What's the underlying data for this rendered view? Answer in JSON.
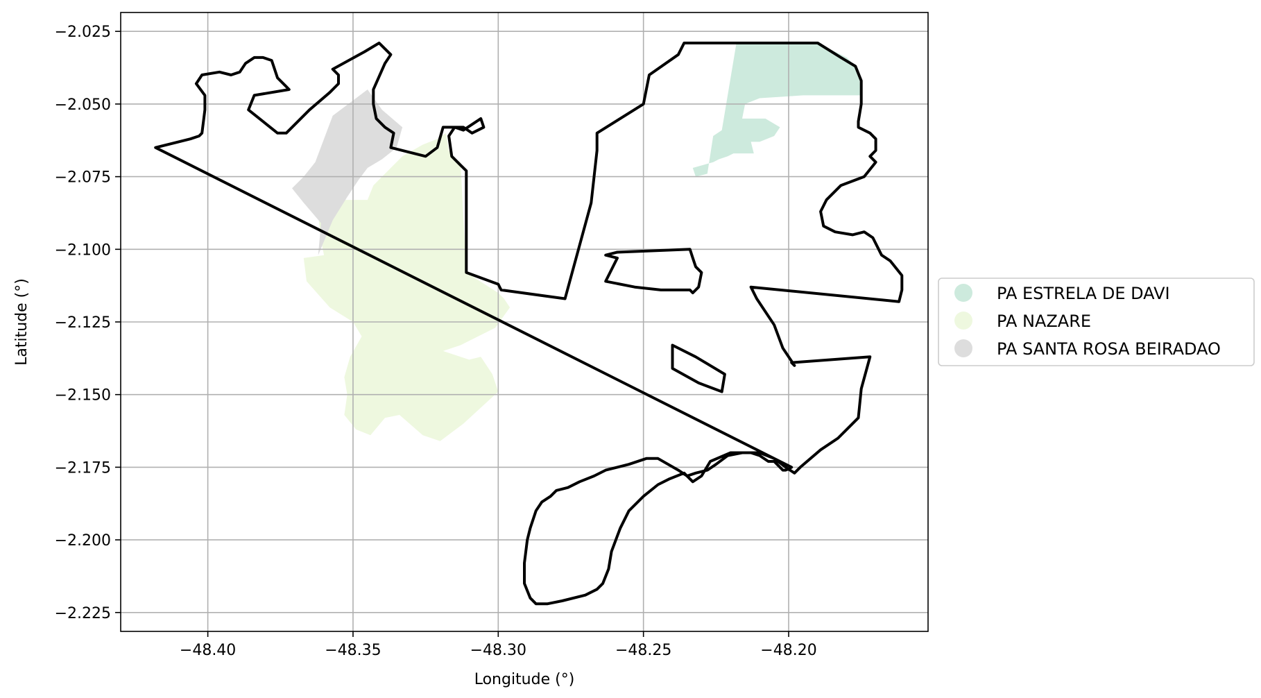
{
  "chart_data": {
    "type": "map",
    "xlabel": "Longitude (°)",
    "ylabel": "Latitude (°)",
    "xlim": [
      -48.43,
      -48.152
    ],
    "ylim": [
      -2.2315,
      -2.0185
    ],
    "x_ticks": [
      -48.4,
      -48.35,
      -48.3,
      -48.25,
      -48.2
    ],
    "x_tick_labels": [
      "−48.40",
      "−48.35",
      "−48.30",
      "−48.25",
      "−48.20"
    ],
    "y_ticks": [
      -2.025,
      -2.05,
      -2.075,
      -2.1,
      -2.125,
      -2.15,
      -2.175,
      -2.2,
      -2.225
    ],
    "y_tick_labels": [
      "−2.025",
      "−2.050",
      "−2.075",
      "−2.100",
      "−2.125",
      "−2.150",
      "−2.175",
      "−2.200",
      "−2.225"
    ],
    "grid": true,
    "legend_position": "center-right outside",
    "series": [
      {
        "name": "PA ESTRELA DE DAVI",
        "color": "#cdeadd",
        "polygons": [
          [
            [
              -48.218,
              -2.029
            ],
            [
              -48.19,
              -2.029
            ],
            [
              -48.18,
              -2.034
            ],
            [
              -48.176,
              -2.038
            ],
            [
              -48.175,
              -2.047
            ],
            [
              -48.195,
              -2.047
            ],
            [
              -48.21,
              -2.048
            ],
            [
              -48.215,
              -2.05
            ],
            [
              -48.216,
              -2.055
            ],
            [
              -48.208,
              -2.055
            ],
            [
              -48.203,
              -2.058
            ],
            [
              -48.205,
              -2.061
            ],
            [
              -48.21,
              -2.063
            ],
            [
              -48.213,
              -2.063
            ],
            [
              -48.212,
              -2.067
            ],
            [
              -48.219,
              -2.067
            ],
            [
              -48.221,
              -2.068
            ],
            [
              -48.224,
              -2.069
            ],
            [
              -48.226,
              -2.07
            ],
            [
              -48.233,
              -2.072
            ],
            [
              -48.232,
              -2.075
            ],
            [
              -48.228,
              -2.074
            ],
            [
              -48.226,
              -2.061
            ],
            [
              -48.223,
              -2.059
            ],
            [
              -48.218,
              -2.029
            ]
          ]
        ]
      },
      {
        "name": "PA NAZARE",
        "color": "#eef8df",
        "polygons": [
          [
            [
              -48.34,
              -2.075
            ],
            [
              -48.333,
              -2.068
            ],
            [
              -48.326,
              -2.064
            ],
            [
              -48.321,
              -2.062
            ],
            [
              -48.318,
              -2.06
            ],
            [
              -48.317,
              -2.066
            ],
            [
              -48.315,
              -2.069
            ],
            [
              -48.313,
              -2.07
            ],
            [
              -48.311,
              -2.108
            ],
            [
              -48.3,
              -2.115
            ],
            [
              -48.298,
              -2.117
            ],
            [
              -48.296,
              -2.12
            ],
            [
              -48.301,
              -2.127
            ],
            [
              -48.313,
              -2.133
            ],
            [
              -48.319,
              -2.135
            ],
            [
              -48.31,
              -2.138
            ],
            [
              -48.306,
              -2.137
            ],
            [
              -48.302,
              -2.143
            ],
            [
              -48.3,
              -2.149
            ],
            [
              -48.312,
              -2.16
            ],
            [
              -48.32,
              -2.166
            ],
            [
              -48.326,
              -2.164
            ],
            [
              -48.334,
              -2.157
            ],
            [
              -48.339,
              -2.158
            ],
            [
              -48.344,
              -2.164
            ],
            [
              -48.349,
              -2.162
            ],
            [
              -48.353,
              -2.157
            ],
            [
              -48.352,
              -2.15
            ],
            [
              -48.353,
              -2.144
            ],
            [
              -48.351,
              -2.137
            ],
            [
              -48.347,
              -2.13
            ],
            [
              -48.35,
              -2.125
            ],
            [
              -48.358,
              -2.12
            ],
            [
              -48.366,
              -2.111
            ],
            [
              -48.367,
              -2.103
            ],
            [
              -48.36,
              -2.102
            ],
            [
              -48.361,
              -2.097
            ],
            [
              -48.362,
              -2.088
            ],
            [
              -48.355,
              -2.083
            ],
            [
              -48.345,
              -2.083
            ],
            [
              -48.343,
              -2.078
            ],
            [
              -48.34,
              -2.075
            ]
          ]
        ]
      },
      {
        "name": "PA SANTA ROSA BEIRADAO",
        "color": "#dddddd",
        "polygons": [
          [
            [
              -48.345,
              -2.045
            ],
            [
              -48.34,
              -2.052
            ],
            [
              -48.333,
              -2.058
            ],
            [
              -48.335,
              -2.065
            ],
            [
              -48.34,
              -2.069
            ],
            [
              -48.345,
              -2.072
            ],
            [
              -48.348,
              -2.076
            ],
            [
              -48.352,
              -2.082
            ],
            [
              -48.357,
              -2.09
            ],
            [
              -48.362,
              -2.102
            ],
            [
              -48.361,
              -2.091
            ],
            [
              -48.367,
              -2.084
            ],
            [
              -48.371,
              -2.079
            ],
            [
              -48.367,
              -2.075
            ],
            [
              -48.363,
              -2.07
            ],
            [
              -48.357,
              -2.054
            ],
            [
              -48.345,
              -2.045
            ]
          ]
        ]
      }
    ],
    "outlines": [
      [
        [
          -48.418,
          -2.065
        ],
        [
          -48.406,
          -2.062
        ],
        [
          -48.403,
          -2.061
        ],
        [
          -48.402,
          -2.06
        ],
        [
          -48.401,
          -2.052
        ],
        [
          -48.401,
          -2.047
        ],
        [
          -48.404,
          -2.043
        ],
        [
          -48.402,
          -2.04
        ],
        [
          -48.396,
          -2.039
        ],
        [
          -48.392,
          -2.04
        ],
        [
          -48.389,
          -2.039
        ],
        [
          -48.387,
          -2.036
        ],
        [
          -48.384,
          -2.034
        ],
        [
          -48.381,
          -2.034
        ],
        [
          -48.378,
          -2.035
        ],
        [
          -48.376,
          -2.041
        ],
        [
          -48.373,
          -2.044
        ],
        [
          -48.372,
          -2.045
        ],
        [
          -48.384,
          -2.047
        ],
        [
          -48.386,
          -2.052
        ],
        [
          -48.376,
          -2.06
        ],
        [
          -48.373,
          -2.06
        ],
        [
          -48.365,
          -2.052
        ],
        [
          -48.358,
          -2.046
        ],
        [
          -48.355,
          -2.043
        ],
        [
          -48.355,
          -2.04
        ],
        [
          -48.357,
          -2.038
        ],
        [
          -48.346,
          -2.032
        ],
        [
          -48.341,
          -2.029
        ],
        [
          -48.34,
          -2.03
        ],
        [
          -48.337,
          -2.033
        ],
        [
          -48.339,
          -2.036
        ],
        [
          -48.343,
          -2.045
        ],
        [
          -48.343,
          -2.05
        ],
        [
          -48.342,
          -2.055
        ],
        [
          -48.339,
          -2.058
        ],
        [
          -48.336,
          -2.06
        ],
        [
          -48.337,
          -2.065
        ],
        [
          -48.325,
          -2.068
        ],
        [
          -48.321,
          -2.065
        ],
        [
          -48.319,
          -2.058
        ],
        [
          -48.315,
          -2.058
        ],
        [
          -48.312,
          -2.058
        ],
        [
          -48.309,
          -2.06
        ],
        [
          -48.305,
          -2.058
        ],
        [
          -48.306,
          -2.055
        ],
        [
          -48.312,
          -2.059
        ],
        [
          -48.315,
          -2.058
        ],
        [
          -48.317,
          -2.061
        ],
        [
          -48.316,
          -2.068
        ],
        [
          -48.313,
          -2.071
        ],
        [
          -48.311,
          -2.073
        ],
        [
          -48.311,
          -2.108
        ],
        [
          -48.3,
          -2.112
        ],
        [
          -48.299,
          -2.114
        ],
        [
          -48.277,
          -2.117
        ],
        [
          -48.268,
          -2.084
        ],
        [
          -48.266,
          -2.066
        ],
        [
          -48.266,
          -2.06
        ],
        [
          -48.25,
          -2.05
        ],
        [
          -48.248,
          -2.04
        ],
        [
          -48.238,
          -2.033
        ],
        [
          -48.236,
          -2.029
        ],
        [
          -48.215,
          -2.029
        ],
        [
          -48.19,
          -2.029
        ],
        [
          -48.182,
          -2.034
        ],
        [
          -48.177,
          -2.037
        ],
        [
          -48.175,
          -2.042
        ],
        [
          -48.175,
          -2.05
        ],
        [
          -48.176,
          -2.056
        ],
        [
          -48.176,
          -2.058
        ],
        [
          -48.172,
          -2.06
        ],
        [
          -48.17,
          -2.062
        ],
        [
          -48.17,
          -2.066
        ],
        [
          -48.172,
          -2.068
        ],
        [
          -48.17,
          -2.07
        ],
        [
          -48.174,
          -2.075
        ],
        [
          -48.182,
          -2.078
        ],
        [
          -48.187,
          -2.083
        ],
        [
          -48.189,
          -2.087
        ],
        [
          -48.188,
          -2.092
        ],
        [
          -48.184,
          -2.094
        ],
        [
          -48.178,
          -2.095
        ],
        [
          -48.174,
          -2.094
        ],
        [
          -48.171,
          -2.096
        ],
        [
          -48.168,
          -2.102
        ],
        [
          -48.165,
          -2.104
        ],
        [
          -48.161,
          -2.109
        ],
        [
          -48.161,
          -2.114
        ],
        [
          -48.162,
          -2.118
        ],
        [
          -48.213,
          -2.113
        ],
        [
          -48.211,
          -2.117
        ],
        [
          -48.205,
          -2.126
        ],
        [
          -48.202,
          -2.134
        ],
        [
          -48.198,
          -2.14
        ],
        [
          -48.199,
          -2.139
        ],
        [
          -48.172,
          -2.137
        ],
        [
          -48.175,
          -2.148
        ],
        [
          -48.176,
          -2.158
        ],
        [
          -48.183,
          -2.165
        ],
        [
          -48.189,
          -2.169
        ],
        [
          -48.196,
          -2.175
        ],
        [
          -48.198,
          -2.177
        ],
        [
          -48.201,
          -2.175
        ],
        [
          -48.205,
          -2.172
        ],
        [
          -48.21,
          -2.17
        ],
        [
          -48.215,
          -2.17
        ],
        [
          -48.22,
          -2.17
        ],
        [
          -48.227,
          -2.173
        ],
        [
          -48.23,
          -2.178
        ],
        [
          -48.233,
          -2.18
        ],
        [
          -48.236,
          -2.177
        ],
        [
          -48.241,
          -2.179
        ],
        [
          -48.245,
          -2.181
        ],
        [
          -48.25,
          -2.185
        ],
        [
          -48.255,
          -2.19
        ],
        [
          -48.258,
          -2.196
        ],
        [
          -48.261,
          -2.204
        ],
        [
          -48.262,
          -2.21
        ],
        [
          -48.264,
          -2.215
        ],
        [
          -48.266,
          -2.217
        ],
        [
          -48.27,
          -2.219
        ],
        [
          -48.278,
          -2.221
        ],
        [
          -48.283,
          -2.222
        ],
        [
          -48.287,
          -2.222
        ],
        [
          -48.289,
          -2.22
        ],
        [
          -48.291,
          -2.215
        ],
        [
          -48.291,
          -2.208
        ],
        [
          -48.29,
          -2.2
        ],
        [
          -48.289,
          -2.196
        ],
        [
          -48.287,
          -2.19
        ],
        [
          -48.285,
          -2.187
        ],
        [
          -48.282,
          -2.185
        ],
        [
          -48.28,
          -2.183
        ],
        [
          -48.276,
          -2.182
        ],
        [
          -48.272,
          -2.18
        ],
        [
          -48.267,
          -2.178
        ],
        [
          -48.263,
          -2.176
        ],
        [
          -48.255,
          -2.174
        ],
        [
          -48.249,
          -2.172
        ],
        [
          -48.245,
          -2.172
        ],
        [
          -48.238,
          -2.176
        ],
        [
          -48.235,
          -2.178
        ],
        [
          -48.232,
          -2.177
        ],
        [
          -48.228,
          -2.176
        ],
        [
          -48.225,
          -2.174
        ],
        [
          -48.221,
          -2.171
        ],
        [
          -48.216,
          -2.17
        ],
        [
          -48.213,
          -2.17
        ],
        [
          -48.21,
          -2.171
        ],
        [
          -48.207,
          -2.173
        ],
        [
          -48.205,
          -2.173
        ],
        [
          -48.204,
          -2.174
        ],
        [
          -48.202,
          -2.176
        ],
        [
          -48.201,
          -2.176
        ],
        [
          -48.199,
          -2.175
        ]
      ],
      [
        [
          -48.263,
          -2.102
        ],
        [
          -48.259,
          -2.101
        ],
        [
          -48.234,
          -2.1
        ],
        [
          -48.233,
          -2.103
        ],
        [
          -48.232,
          -2.106
        ],
        [
          -48.23,
          -2.108
        ],
        [
          -48.231,
          -2.113
        ],
        [
          -48.233,
          -2.115
        ],
        [
          -48.234,
          -2.114
        ],
        [
          -48.244,
          -2.114
        ],
        [
          -48.253,
          -2.113
        ],
        [
          -48.263,
          -2.111
        ],
        [
          -48.261,
          -2.107
        ],
        [
          -48.259,
          -2.103
        ],
        [
          -48.263,
          -2.102
        ]
      ],
      [
        [
          -48.24,
          -2.133
        ],
        [
          -48.232,
          -2.137
        ],
        [
          -48.222,
          -2.143
        ],
        [
          -48.223,
          -2.149
        ],
        [
          -48.231,
          -2.146
        ],
        [
          -48.24,
          -2.141
        ],
        [
          -48.24,
          -2.137
        ],
        [
          -48.24,
          -2.133
        ]
      ]
    ]
  }
}
